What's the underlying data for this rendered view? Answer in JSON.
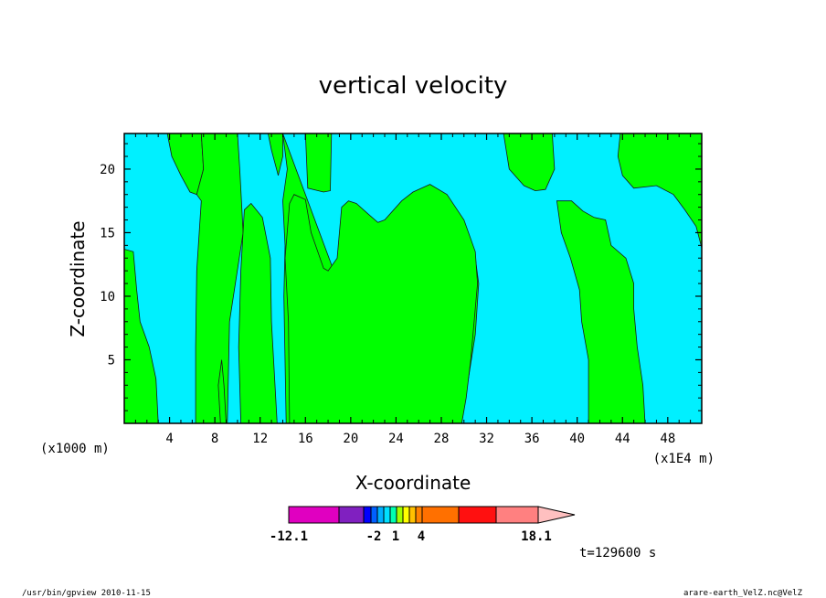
{
  "chart_data": {
    "type": "heatmap",
    "title": "vertical velocity",
    "xlabel": "X-coordinate",
    "ylabel": "Z-coordinate",
    "x_scale_note": "(x1E4 m)",
    "z_scale_note": "(x1000 m)",
    "xlim": [
      0,
      51
    ],
    "ylim": [
      0,
      22.8
    ],
    "x_ticks": [
      "4",
      "8",
      "12",
      "16",
      "20",
      "24",
      "28",
      "32",
      "36",
      "40",
      "44",
      "48"
    ],
    "y_ticks": [
      "5",
      "10",
      "15",
      "20"
    ],
    "colorbar": {
      "min_label": "-12.1",
      "max_label": "18.1",
      "tick_labels": [
        "-2",
        "1",
        "4"
      ],
      "colors": [
        "#e000c0",
        "#8020c0",
        "#0000ff",
        "#0060ff",
        "#00b0ff",
        "#00e0ff",
        "#00ffb0",
        "#a0ff00",
        "#ffff00",
        "#ffc000",
        "#ff8000",
        "#ff7000",
        "#ff1010",
        "#ff8080",
        "#ffc0c0"
      ]
    },
    "field_colors": {
      "negative": "#00f0ff",
      "positive": "#00ff00"
    },
    "positive_regions": [
      [
        [
          0,
          13.7
        ],
        [
          0.8,
          13.5
        ],
        [
          1.1,
          10.5
        ],
        [
          1.4,
          8
        ],
        [
          2.2,
          6
        ],
        [
          2.8,
          3.5
        ],
        [
          3.0,
          0
        ],
        [
          0,
          0
        ]
      ],
      [
        [
          3.8,
          22.8
        ],
        [
          4.2,
          21
        ],
        [
          5.0,
          19.5
        ],
        [
          5.8,
          18.2
        ],
        [
          6.4,
          18
        ],
        [
          7.0,
          20
        ],
        [
          6.8,
          22.8
        ]
      ],
      [
        [
          6.8,
          22.8
        ],
        [
          7.0,
          20
        ],
        [
          6.4,
          18
        ],
        [
          6.8,
          17.5
        ],
        [
          6.4,
          12
        ],
        [
          6.3,
          6
        ],
        [
          6.3,
          0
        ],
        [
          9.0,
          0
        ],
        [
          8.8,
          3
        ],
        [
          8.6,
          5
        ],
        [
          8.3,
          3
        ],
        [
          8.5,
          0
        ],
        [
          9.1,
          0
        ],
        [
          9.3,
          8
        ],
        [
          10.5,
          15
        ],
        [
          10.2,
          20
        ],
        [
          10.0,
          22.8
        ]
      ],
      [
        [
          10.6,
          16.8
        ],
        [
          11.2,
          17.3
        ],
        [
          12.2,
          16.2
        ],
        [
          12.9,
          13
        ],
        [
          13.0,
          8
        ],
        [
          13.5,
          0
        ],
        [
          10.3,
          0
        ],
        [
          10.1,
          6
        ],
        [
          10.3,
          12
        ]
      ],
      [
        [
          12.7,
          22.8
        ],
        [
          13.0,
          21.5
        ],
        [
          13.6,
          19.5
        ],
        [
          14.0,
          21
        ],
        [
          14.0,
          22.8
        ]
      ],
      [
        [
          14.0,
          22.8
        ],
        [
          14.4,
          20
        ],
        [
          14.0,
          17.5
        ],
        [
          14.2,
          14
        ],
        [
          14.1,
          10
        ],
        [
          14.3,
          0
        ],
        [
          22.9,
          0
        ],
        [
          23.1,
          5
        ],
        [
          22.6,
          12
        ],
        [
          23.3,
          15
        ],
        [
          24.4,
          16.5
        ],
        [
          25.5,
          17.5
        ],
        [
          27.0,
          18.5
        ],
        [
          29.0,
          17
        ],
        [
          31.0,
          13
        ],
        [
          31.3,
          11
        ],
        [
          31.0,
          7
        ],
        [
          30.3,
          3
        ],
        [
          29.8,
          0
        ],
        [
          28.6,
          0
        ],
        [
          28.2,
          6
        ],
        [
          27.0,
          10
        ],
        [
          26.3,
          13.5
        ],
        [
          25.0,
          14.5
        ],
        [
          24.2,
          13
        ],
        [
          23.5,
          8
        ],
        [
          23.4,
          4
        ],
        [
          23.5,
          0
        ]
      ],
      [
        [
          14.6,
          17.3
        ],
        [
          15.0,
          18
        ],
        [
          16.0,
          17.6
        ],
        [
          16.5,
          15
        ],
        [
          16.9,
          14
        ],
        [
          17.6,
          12.2
        ],
        [
          18.0,
          12
        ],
        [
          18.8,
          13
        ],
        [
          19.2,
          17
        ],
        [
          19.8,
          17.5
        ],
        [
          20.5,
          17.3
        ],
        [
          21.5,
          16.5
        ],
        [
          22.4,
          15.8
        ],
        [
          23.0,
          16
        ],
        [
          24.5,
          17.5
        ],
        [
          25.5,
          18.2
        ],
        [
          27.0,
          18.8
        ],
        [
          28.5,
          18
        ],
        [
          30.0,
          16
        ],
        [
          31.0,
          13.5
        ],
        [
          31.2,
          11
        ],
        [
          30.6,
          5
        ],
        [
          30.2,
          2
        ],
        [
          29.8,
          0
        ],
        [
          14.6,
          0
        ],
        [
          14.5,
          8
        ],
        [
          14.2,
          13
        ]
      ],
      [
        [
          16.0,
          22.8
        ],
        [
          16.2,
          18.5
        ],
        [
          17.6,
          18.2
        ],
        [
          18.2,
          18.3
        ],
        [
          18.3,
          22.8
        ]
      ],
      [
        [
          33.5,
          22.8
        ],
        [
          34.0,
          20
        ],
        [
          35.3,
          18.7
        ],
        [
          36.3,
          18.3
        ],
        [
          37.2,
          18.4
        ],
        [
          38.0,
          20
        ],
        [
          37.8,
          22.8
        ]
      ],
      [
        [
          38.2,
          17.5
        ],
        [
          39.5,
          17.5
        ],
        [
          40.5,
          16.7
        ],
        [
          41.5,
          16.2
        ],
        [
          42.5,
          16
        ],
        [
          43.0,
          14
        ],
        [
          44.3,
          13
        ],
        [
          45.0,
          11
        ],
        [
          45.0,
          9
        ],
        [
          45.3,
          6
        ],
        [
          45.8,
          3
        ],
        [
          46.0,
          0
        ],
        [
          41.0,
          0
        ],
        [
          41.0,
          5
        ],
        [
          40.4,
          8
        ],
        [
          40.2,
          10.5
        ],
        [
          39.4,
          13
        ],
        [
          38.6,
          15
        ]
      ],
      [
        [
          43.8,
          22.8
        ],
        [
          43.6,
          21
        ],
        [
          44.0,
          19.5
        ],
        [
          45.0,
          18.5
        ],
        [
          47.0,
          18.7
        ],
        [
          48.5,
          18
        ],
        [
          49.5,
          16.8
        ],
        [
          50.5,
          15.5
        ],
        [
          51,
          13.8
        ],
        [
          51,
          22.8
        ]
      ]
    ]
  },
  "footer": {
    "command": "/usr/bin/gpview 2010-11-15",
    "file": "arare-earth_VelZ.nc@VelZ",
    "time": "t=129600 s"
  }
}
